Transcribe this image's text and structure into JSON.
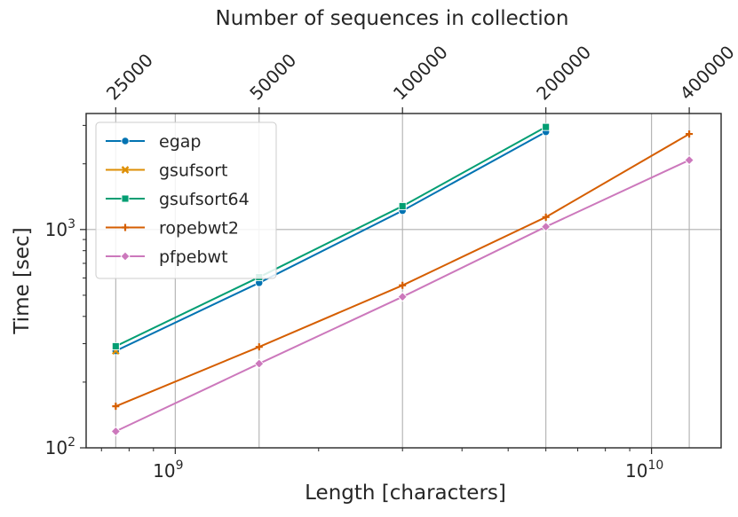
{
  "chart_data": {
    "type": "line",
    "title": "Number of sequences in collection",
    "xlabel": "Length [characters]",
    "ylabel": "Time [sec]",
    "xscale": "log",
    "yscale": "log",
    "xlim": [
      650000000,
      14000000000
    ],
    "ylim": [
      100,
      3400
    ],
    "grid": true,
    "legend_position": "top-left",
    "x": [
      750000000,
      1500000000,
      3000000000,
      6000000000,
      12000000000
    ],
    "x_ticks": [
      {
        "value": 1000000000,
        "base": "10",
        "exp": "9"
      },
      {
        "value": 10000000000,
        "base": "10",
        "exp": "10"
      }
    ],
    "y_ticks": [
      {
        "value": 100,
        "base": "10",
        "exp": "2"
      },
      {
        "value": 1000,
        "base": "10",
        "exp": "3"
      }
    ],
    "top_ticks": [
      {
        "x": 750000000,
        "label": "25000"
      },
      {
        "x": 1500000000,
        "label": "50000"
      },
      {
        "x": 3000000000,
        "label": "100000"
      },
      {
        "x": 6000000000,
        "label": "200000"
      },
      {
        "x": 12000000000,
        "label": "400000"
      }
    ],
    "series": [
      {
        "name": "egap",
        "color": "#0173b2",
        "marker": "circle",
        "values": [
          278,
          570,
          1220,
          2800,
          null
        ]
      },
      {
        "name": "gsufsort",
        "color": "#de8f05",
        "marker": "x",
        "values": [
          278,
          null,
          null,
          null,
          null
        ]
      },
      {
        "name": "gsufsort64",
        "color": "#029e73",
        "marker": "square",
        "values": [
          292,
          605,
          1280,
          2950,
          null
        ]
      },
      {
        "name": "ropebwt2",
        "color": "#d55e00",
        "marker": "plus",
        "values": [
          155,
          290,
          555,
          1140,
          2740
        ]
      },
      {
        "name": "pfpebwt",
        "color": "#cc78bc",
        "marker": "diamond",
        "values": [
          119,
          243,
          492,
          1030,
          2080
        ]
      }
    ]
  }
}
